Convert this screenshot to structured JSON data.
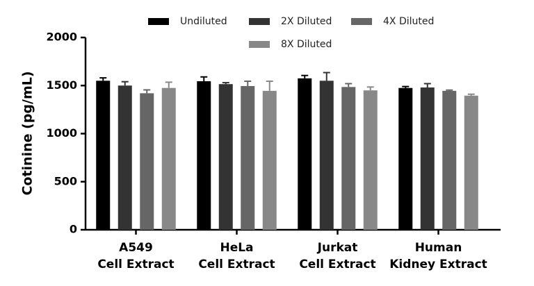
{
  "chart_data": {
    "type": "bar",
    "y_label": "Cotinine (pg/mL)",
    "categories": [
      [
        "A549",
        "Cell Extract"
      ],
      [
        "HeLa",
        "Cell Extract"
      ],
      [
        "Jurkat",
        "Cell Extract"
      ],
      [
        "Human",
        "Kidney Extract"
      ]
    ],
    "series": [
      {
        "name": "Undiluted",
        "color": "#000000",
        "values": [
          1550,
          1545,
          1575,
          1475
        ],
        "errors": [
          30,
          45,
          30,
          15
        ]
      },
      {
        "name": "2X Diluted",
        "color": "#333333",
        "values": [
          1500,
          1515,
          1550,
          1480
        ],
        "errors": [
          40,
          15,
          85,
          40
        ]
      },
      {
        "name": "4X Diluted",
        "color": "#666666",
        "values": [
          1420,
          1495,
          1485,
          1445
        ],
        "errors": [
          35,
          50,
          35,
          8
        ]
      },
      {
        "name": "8X Diluted",
        "color": "#888888",
        "values": [
          1475,
          1445,
          1450,
          1395
        ],
        "errors": [
          60,
          100,
          35,
          15
        ]
      }
    ],
    "ylim": [
      0,
      2000
    ],
    "yticks": [
      0,
      500,
      1000,
      1500,
      2000
    ],
    "grid": false
  }
}
